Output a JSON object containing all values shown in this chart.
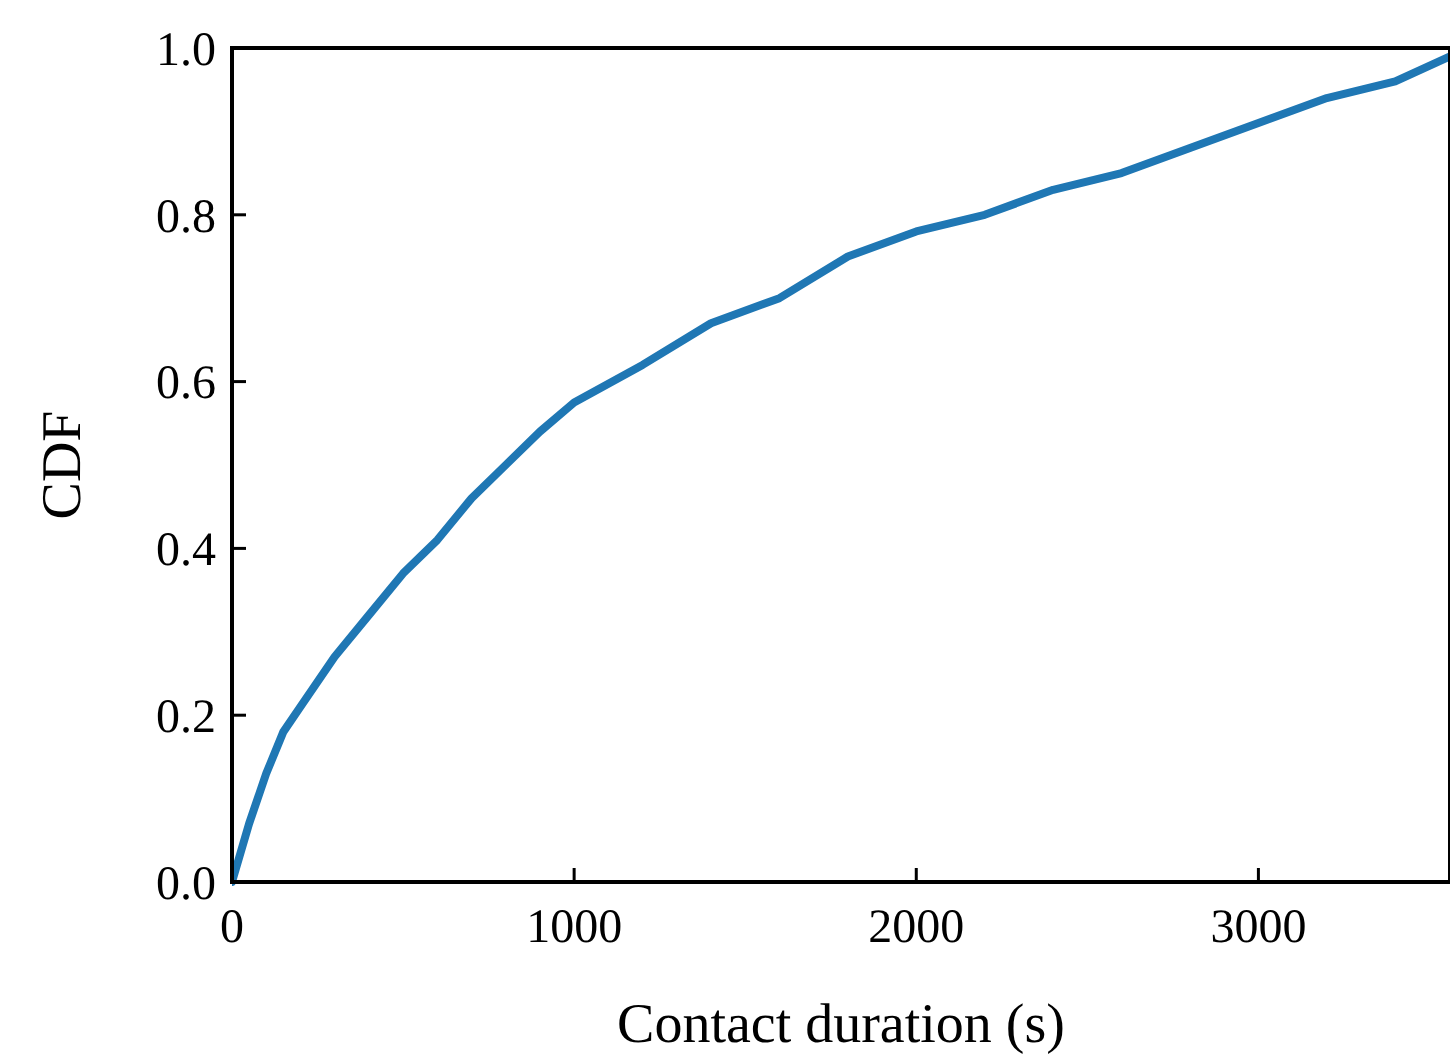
{
  "chart_data": {
    "type": "line",
    "xlabel": "Contact duration (s)",
    "ylabel": "CDF",
    "x": [
      0,
      50,
      100,
      150,
      200,
      300,
      400,
      500,
      600,
      700,
      800,
      900,
      1000,
      1200,
      1400,
      1600,
      1800,
      2000,
      2200,
      2400,
      2600,
      2800,
      3000,
      3200,
      3400,
      3560
    ],
    "series": [
      {
        "color": "#1f77b4",
        "values": [
          0,
          0.07,
          0.13,
          0.18,
          0.21,
          0.27,
          0.32,
          0.37,
          0.41,
          0.46,
          0.5,
          0.54,
          0.575,
          0.62,
          0.67,
          0.7,
          0.75,
          0.78,
          0.8,
          0.83,
          0.85,
          0.88,
          0.91,
          0.94,
          0.96,
          0.99
        ]
      }
    ],
    "xlim": [
      0,
      3560
    ],
    "xticks": [
      0,
      1000,
      2000,
      3000
    ],
    "ylim": [
      0,
      1
    ],
    "yticks": [
      {
        "value": 0,
        "label": "0.0"
      },
      {
        "value": 0.2,
        "label": "0.2"
      },
      {
        "value": 0.4,
        "label": "0.4"
      },
      {
        "value": 0.6,
        "label": "0.6"
      },
      {
        "value": 0.8,
        "label": "0.8"
      },
      {
        "value": 1,
        "label": "1.0"
      }
    ],
    "grid": false,
    "marker": "none",
    "line_style": "solid"
  }
}
